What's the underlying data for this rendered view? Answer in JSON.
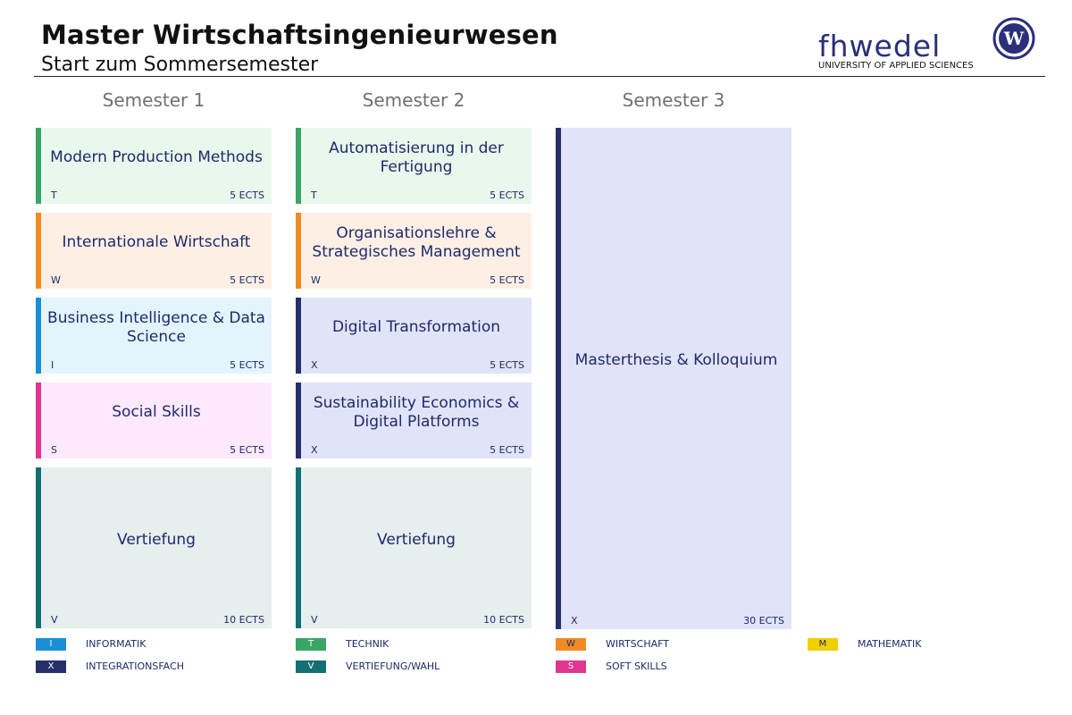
{
  "header": {
    "title": "Master Wirtschaftsingenieurwesen",
    "subtitle": "Start zum Sommersemester"
  },
  "logo": {
    "wordmark": "fhwedel",
    "tagline": "UNIVERSITY OF APPLIED SCIENCES",
    "seal_letter": "W"
  },
  "categories": {
    "T": {
      "color": "#3aa565",
      "bg": "#e9f8ec",
      "swatch_text_color": "#ffffff"
    },
    "W": {
      "color": "#f08a24",
      "bg": "#fdefe4",
      "swatch_text_color": "#1d2a6b"
    },
    "I": {
      "color": "#1a8fd6",
      "bg": "#e3f4fd",
      "swatch_text_color": "#ffffff"
    },
    "S": {
      "color": "#e0368f",
      "bg": "#fde9fb",
      "swatch_text_color": "#ffffff"
    },
    "V": {
      "color": "#146f75",
      "bg": "#e6eeee",
      "swatch_text_color": "#ffffff"
    },
    "X": {
      "color": "#25306a",
      "bg": "#e1e3f8",
      "swatch_text_color": "#ffffff"
    },
    "M": {
      "color": "#f2d000",
      "bg": "#fff8d6",
      "swatch_text_color": "#1d2a6b"
    }
  },
  "semesters": [
    {
      "label": "Semester 1",
      "modules": [
        {
          "name": "Modern Production Methods",
          "code": "T",
          "ects": "5 ECTS",
          "ects_value": 5
        },
        {
          "name": "Internationale Wirtschaft",
          "code": "W",
          "ects": "5 ECTS",
          "ects_value": 5
        },
        {
          "name": "Business Intelligence & Data Science",
          "code": "I",
          "ects": "5 ECTS",
          "ects_value": 5
        },
        {
          "name": "Social Skills",
          "code": "S",
          "ects": "5 ECTS",
          "ects_value": 5
        },
        {
          "name": "Vertiefung",
          "code": "V",
          "ects": "10 ECTS",
          "ects_value": 10
        }
      ]
    },
    {
      "label": "Semester 2",
      "modules": [
        {
          "name": "Automatisierung in der Fertigung",
          "code": "T",
          "ects": "5 ECTS",
          "ects_value": 5
        },
        {
          "name": "Organisationslehre & Strategisches Management",
          "code": "W",
          "ects": "5 ECTS",
          "ects_value": 5
        },
        {
          "name": "Digital Transformation",
          "code": "X",
          "ects": "5 ECTS",
          "ects_value": 5
        },
        {
          "name": "Sustainability Economics & Digital Platforms",
          "code": "X",
          "ects": "5 ECTS",
          "ects_value": 5
        },
        {
          "name": "Vertiefung",
          "code": "V",
          "ects": "10 ECTS",
          "ects_value": 10
        }
      ]
    },
    {
      "label": "Semester 3",
      "modules": [
        {
          "name": "Masterthesis & Kolloquium",
          "code": "X",
          "ects": "30 ECTS",
          "ects_value": 30
        }
      ]
    }
  ],
  "legend": [
    {
      "code": "I",
      "label": "INFORMATIK"
    },
    {
      "code": "T",
      "label": "TECHNIK"
    },
    {
      "code": "W",
      "label": "WIRTSCHAFT"
    },
    {
      "code": "M",
      "label": "MATHEMATIK"
    },
    {
      "code": "X",
      "label": "INTEGRATIONSFACH"
    },
    {
      "code": "V",
      "label": "VERTIEFUNG/WAHL"
    },
    {
      "code": "S",
      "label": "SOFT SKILLS"
    }
  ]
}
